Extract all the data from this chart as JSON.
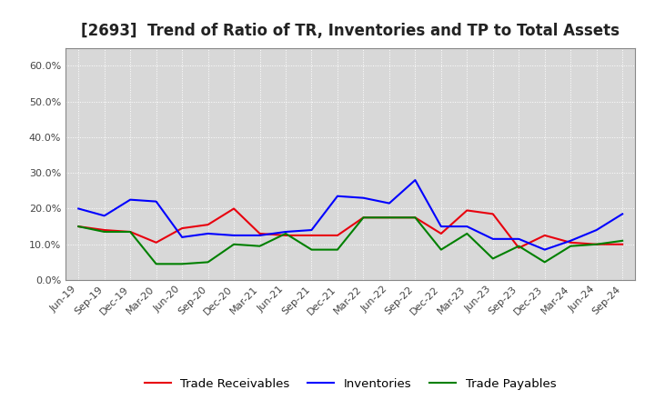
{
  "title": "[2693]  Trend of Ratio of TR, Inventories and TP to Total Assets",
  "x_labels": [
    "Jun-19",
    "Sep-19",
    "Dec-19",
    "Mar-20",
    "Jun-20",
    "Sep-20",
    "Dec-20",
    "Mar-21",
    "Jun-21",
    "Sep-21",
    "Dec-21",
    "Mar-22",
    "Jun-22",
    "Sep-22",
    "Dec-22",
    "Mar-23",
    "Jun-23",
    "Sep-23",
    "Dec-23",
    "Mar-24",
    "Jun-24",
    "Sep-24"
  ],
  "trade_receivables": [
    15.0,
    14.0,
    13.5,
    10.5,
    14.5,
    15.5,
    20.0,
    13.0,
    12.5,
    12.5,
    12.5,
    17.5,
    17.5,
    17.5,
    13.0,
    19.5,
    18.5,
    9.0,
    12.5,
    10.5,
    10.0,
    10.0
  ],
  "inventories": [
    20.0,
    18.0,
    22.5,
    22.0,
    12.0,
    13.0,
    12.5,
    12.5,
    13.5,
    14.0,
    23.5,
    23.0,
    21.5,
    28.0,
    15.0,
    15.0,
    11.5,
    11.5,
    8.5,
    11.0,
    14.0,
    18.5
  ],
  "trade_payables": [
    15.0,
    13.5,
    13.5,
    4.5,
    4.5,
    5.0,
    10.0,
    9.5,
    13.0,
    8.5,
    8.5,
    17.5,
    17.5,
    17.5,
    8.5,
    13.0,
    6.0,
    9.5,
    5.0,
    9.5,
    10.0,
    11.0
  ],
  "ylim": [
    0,
    65
  ],
  "yticks": [
    0,
    10,
    20,
    30,
    40,
    50,
    60
  ],
  "ytick_labels": [
    "0.0%",
    "10.0%",
    "20.0%",
    "30.0%",
    "40.0%",
    "50.0%",
    "60.0%"
  ],
  "color_tr": "#e8000d",
  "color_inv": "#0000ff",
  "color_tp": "#008000",
  "legend_labels": [
    "Trade Receivables",
    "Inventories",
    "Trade Payables"
  ],
  "bg_color": "#ffffff",
  "plot_bg_color": "#d8d8d8",
  "grid_color": "#ffffff",
  "title_fontsize": 12,
  "tick_fontsize": 8,
  "legend_fontsize": 9.5
}
